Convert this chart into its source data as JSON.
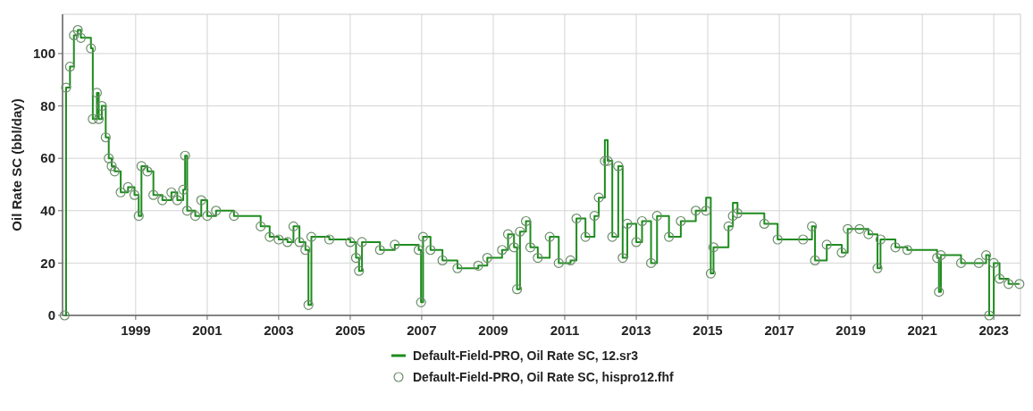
{
  "chart_data": {
    "type": "step",
    "ylabel": "Oil Rate SC (bbl/day)",
    "x": [
      "1997-01-05",
      "1997-01-20",
      "1997-03-01",
      "1997-04-10",
      "1997-05-20",
      "1997-06-20",
      "1997-10-01",
      "1997-10-20",
      "1997-12-01",
      "1997-12-20",
      "1998-01-20",
      "1998-03-01",
      "1998-04-01",
      "1998-05-01",
      "1998-06-01",
      "1998-08-01",
      "1998-10-15",
      "1998-12-20",
      "1999-02-01",
      "1999-03-01",
      "1999-05-01",
      "1999-07-01",
      "1999-10-01",
      "2000-01-01",
      "2000-03-01",
      "2000-05-01",
      "2000-05-20",
      "2000-06-10",
      "2000-09-01",
      "2000-11-01",
      "2001-01-01",
      "2001-04-01",
      "2001-10-01",
      "2002-07-01",
      "2002-10-01",
      "2003-01-01",
      "2003-04-01",
      "2003-06-01",
      "2003-08-01",
      "2003-10-01",
      "2003-11-01",
      "2003-12-01",
      "2004-06-01",
      "2005-01-01",
      "2005-03-01",
      "2005-04-01",
      "2005-05-01",
      "2005-11-01",
      "2006-04-01",
      "2006-12-01",
      "2006-12-25",
      "2007-01-15",
      "2007-04-01",
      "2007-08-01",
      "2008-01-01",
      "2008-08-01",
      "2008-11-01",
      "2009-04-01",
      "2009-06-01",
      "2009-08-01",
      "2009-09-01",
      "2009-10-01",
      "2009-12-01",
      "2010-01-15",
      "2010-04-01",
      "2010-08-01",
      "2010-11-01",
      "2011-03-01",
      "2011-05-01",
      "2011-08-01",
      "2011-11-01",
      "2011-12-15",
      "2012-02-15",
      "2012-03-15",
      "2012-05-01",
      "2012-07-01",
      "2012-08-15",
      "2012-10-01",
      "2013-01-01",
      "2013-03-01",
      "2013-06-01",
      "2013-08-01",
      "2013-12-01",
      "2014-04-01",
      "2014-09-01",
      "2014-12-15",
      "2015-02-01",
      "2015-03-01",
      "2015-08-01",
      "2015-09-15",
      "2015-11-01",
      "2016-08-01",
      "2016-12-15",
      "2017-09-01",
      "2017-12-01",
      "2018-01-01",
      "2018-05-01",
      "2018-10-01",
      "2018-12-01",
      "2019-04-01",
      "2019-07-01",
      "2019-10-01",
      "2019-11-01",
      "2020-04-01",
      "2020-08-01",
      "2021-06-01",
      "2021-06-20",
      "2021-07-10",
      "2022-02-01",
      "2022-08-01",
      "2022-10-15",
      "2022-11-15",
      "2023-01-01",
      "2023-03-01",
      "2023-06-01",
      "2023-09-20"
    ],
    "series": [
      {
        "name": "Default-Field-PRO, Oil Rate SC, 12.sr3",
        "color": "#1e8c1e",
        "values": [
          0,
          87,
          95,
          107,
          109,
          106,
          102,
          75,
          85,
          75,
          80,
          68,
          60,
          57,
          55,
          47,
          49,
          46,
          38,
          57,
          55,
          46,
          44,
          47,
          44,
          48,
          61,
          40,
          38,
          44,
          38,
          40,
          38,
          34,
          30,
          29,
          28,
          34,
          28,
          25,
          4,
          30,
          29,
          28,
          22,
          17,
          28,
          25,
          27,
          25,
          5,
          30,
          25,
          21,
          18,
          19,
          22,
          25,
          31,
          26,
          10,
          32,
          36,
          26,
          22,
          30,
          20,
          21,
          37,
          30,
          38,
          45,
          67,
          59,
          30,
          57,
          22,
          35,
          28,
          36,
          20,
          38,
          30,
          36,
          40,
          45,
          16,
          26,
          34,
          43,
          39,
          35,
          29,
          29,
          34,
          21,
          27,
          24,
          33,
          33,
          31,
          18,
          29,
          26,
          25,
          22,
          9,
          23,
          20,
          20,
          23,
          0,
          20,
          14,
          12,
          12
        ]
      },
      {
        "name": "Default-Field-PRO, Oil Rate SC, hispro12.fhf",
        "type": "scatter",
        "color": "#6b8e6b",
        "marker": "circle",
        "values": [
          0,
          87,
          95,
          107,
          109,
          106,
          102,
          75,
          85,
          75,
          80,
          68,
          60,
          57,
          55,
          47,
          49,
          46,
          38,
          57,
          55,
          46,
          44,
          47,
          44,
          48,
          61,
          40,
          38,
          44,
          38,
          40,
          38,
          34,
          30,
          29,
          28,
          34,
          28,
          25,
          4,
          30,
          29,
          28,
          22,
          17,
          28,
          25,
          27,
          25,
          5,
          30,
          25,
          21,
          18,
          19,
          22,
          25,
          31,
          26,
          10,
          32,
          36,
          26,
          22,
          30,
          20,
          21,
          37,
          30,
          38,
          45,
          59,
          59,
          30,
          57,
          22,
          35,
          28,
          36,
          20,
          38,
          30,
          36,
          40,
          40,
          16,
          26,
          34,
          38,
          39,
          35,
          29,
          29,
          34,
          21,
          27,
          24,
          33,
          33,
          31,
          18,
          29,
          26,
          25,
          22,
          9,
          23,
          20,
          20,
          23,
          0,
          20,
          14,
          12,
          12
        ]
      }
    ],
    "xlim": [
      "1996-12-15",
      "2023-10-01"
    ],
    "xticks": [
      "1999",
      "2001",
      "2003",
      "2005",
      "2007",
      "2009",
      "2011",
      "2013",
      "2015",
      "2017",
      "2019",
      "2021",
      "2023"
    ],
    "ylim": [
      0,
      115
    ],
    "yticks": [
      0,
      20,
      40,
      60,
      80,
      100
    ],
    "grid": true,
    "legend": "bottom",
    "line_style": "solid"
  }
}
